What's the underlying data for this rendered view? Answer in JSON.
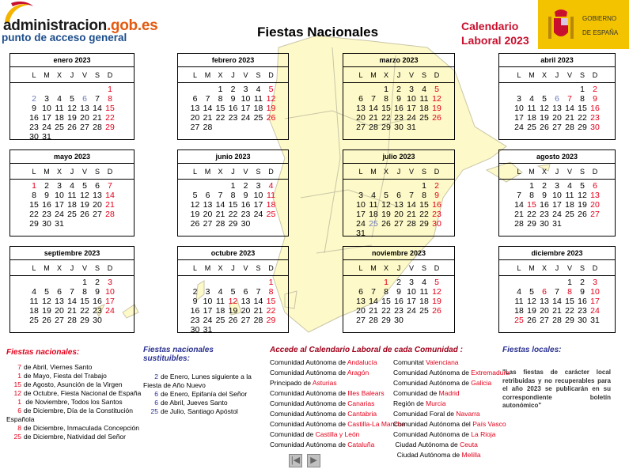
{
  "header": {
    "logo_main": "administracion",
    "logo_domain": ".gob.es",
    "logo_sub": "punto de acceso general",
    "title": "Fiestas Nacionales",
    "calendar_title_1": "Calendario",
    "calendar_title_2": "Laboral 2023",
    "gov_logo_1": "GOBIERNO",
    "gov_logo_2": "DE ESPAÑA"
  },
  "colors": {
    "holiday": "#e3001b",
    "substitutable": "#6d7bbd",
    "map": "#fdf9c8",
    "gov": "#f3c300"
  },
  "weekdays": [
    "L",
    "M",
    "X",
    "J",
    "V",
    "S",
    "D"
  ],
  "year": 2023,
  "months": [
    {
      "label": "enero 2023",
      "red": [
        1,
        8,
        15,
        22,
        29
      ],
      "blue": [
        2,
        6
      ]
    },
    {
      "label": "febrero 2023",
      "red": [
        5,
        12,
        19,
        26
      ],
      "blue": []
    },
    {
      "label": "marzo 2023",
      "red": [
        5,
        12,
        19,
        26
      ],
      "blue": []
    },
    {
      "label": "abril 2023",
      "red": [
        2,
        7,
        9,
        16,
        23,
        30
      ],
      "blue": [
        6
      ]
    },
    {
      "label": "mayo 2023",
      "red": [
        1,
        7,
        14,
        21,
        28
      ],
      "blue": []
    },
    {
      "label": "junio 2023",
      "red": [
        4,
        11,
        18,
        25
      ],
      "blue": []
    },
    {
      "label": "julio 2023",
      "red": [
        2,
        9,
        16,
        23,
        30
      ],
      "blue": [
        25
      ]
    },
    {
      "label": "agosto 2023",
      "red": [
        6,
        13,
        15,
        20,
        27
      ],
      "blue": []
    },
    {
      "label": "septiembre 2023",
      "red": [
        3,
        10,
        17,
        24
      ],
      "blue": []
    },
    {
      "label": "octubre 2023",
      "red": [
        1,
        8,
        12,
        15,
        22,
        29
      ],
      "blue": []
    },
    {
      "label": "noviembre 2023",
      "red": [
        1,
        5,
        12,
        19,
        26
      ],
      "blue": []
    },
    {
      "label": "diciembre 2023",
      "red": [
        3,
        6,
        8,
        10,
        17,
        24,
        25
      ],
      "blue": []
    }
  ],
  "national": {
    "heading": "Fiestas nacionales:",
    "items": [
      {
        "day": "7",
        "text": "de Abril, Viernes Santo"
      },
      {
        "day": "1",
        "text": "de Mayo, Fiesta del Trabajo"
      },
      {
        "day": "15",
        "text": "de Agosto, Asunción de la Virgen"
      },
      {
        "day": "12",
        "text": "de Octubre, Fiesta Nacional de España"
      },
      {
        "day": "1",
        "text": " de Noviembre, Todos los Santos"
      },
      {
        "day": "6",
        "text": "de Diciembre, Día de la Constitución Española"
      },
      {
        "day": "8",
        "text": "de Diciembre, Inmaculada Concepción"
      },
      {
        "day": "25",
        "text": "de Diciembre, Natividad del Señor"
      }
    ]
  },
  "substitutable": {
    "heading": "Fiestas nacionales sustituibles:",
    "items": [
      {
        "day": "2",
        "text": "de Enero, Lunes siguiente a la Fiesta de Año Nuevo"
      },
      {
        "day": "6",
        "text": "de Enero, Epifanía del Señor"
      },
      {
        "day": "6",
        "text": "de Abril, Jueves Santo"
      },
      {
        "day": "25",
        "text": "de Julio, Santiago Apóstol"
      }
    ]
  },
  "communities": {
    "heading": "Accede al Calendario Laboral de cada Comunidad :",
    "col1": [
      {
        "prefix": "Comunidad Autónoma de ",
        "link": "Andalucía"
      },
      {
        "prefix": "Comunidad Autónoma de ",
        "link": "Aragón"
      },
      {
        "prefix": "Principado de ",
        "link": "Asturias"
      },
      {
        "prefix": "Comunidad Autónoma de ",
        "link": "Illes Balears"
      },
      {
        "prefix": "Comunidad Autónoma de ",
        "link": "Canarias"
      },
      {
        "prefix": "Comunidad Autónoma de ",
        "link": "Cantabria"
      },
      {
        "prefix": "Comunidad Autónoma de ",
        "link": "Castilla-La Mancha"
      },
      {
        "prefix": "Comunidad de ",
        "link": "Castilla y León"
      },
      {
        "prefix": "Comunidad Autónoma de ",
        "link": "Cataluña"
      }
    ],
    "col2": [
      {
        "prefix": "Comunitat ",
        "link": "Valenciana"
      },
      {
        "prefix": "Comunidad Autónoma de ",
        "link": "Extremadura"
      },
      {
        "prefix": "Comunidad Autónoma de ",
        "link": "Galicia"
      },
      {
        "prefix": "Comunidad de ",
        "link": "Madrid"
      },
      {
        "prefix": "Región de ",
        "link": "Murcia"
      },
      {
        "prefix": "Comunidad Foral de ",
        "link": "Navarra"
      },
      {
        "prefix": "Comunidad Autónoma del ",
        "link": "País Vasco"
      },
      {
        "prefix": "Comunidad Autónoma de ",
        "link": "La Rioja"
      },
      {
        "prefix": " Ciudad Autónoma de ",
        "link": "Ceuta"
      },
      {
        "prefix": "  Ciudad Autónoma de ",
        "link": "Melilla"
      }
    ]
  },
  "local": {
    "heading": "Fiestas locales:",
    "text": "\"Las fiestas de carácter local retribuidas y no recuperables para el año 2023 se publicarán en su correspondiente boletín autonómico\""
  },
  "nav": {
    "prev_icon": "first-page-icon",
    "next_icon": "next-page-icon"
  }
}
